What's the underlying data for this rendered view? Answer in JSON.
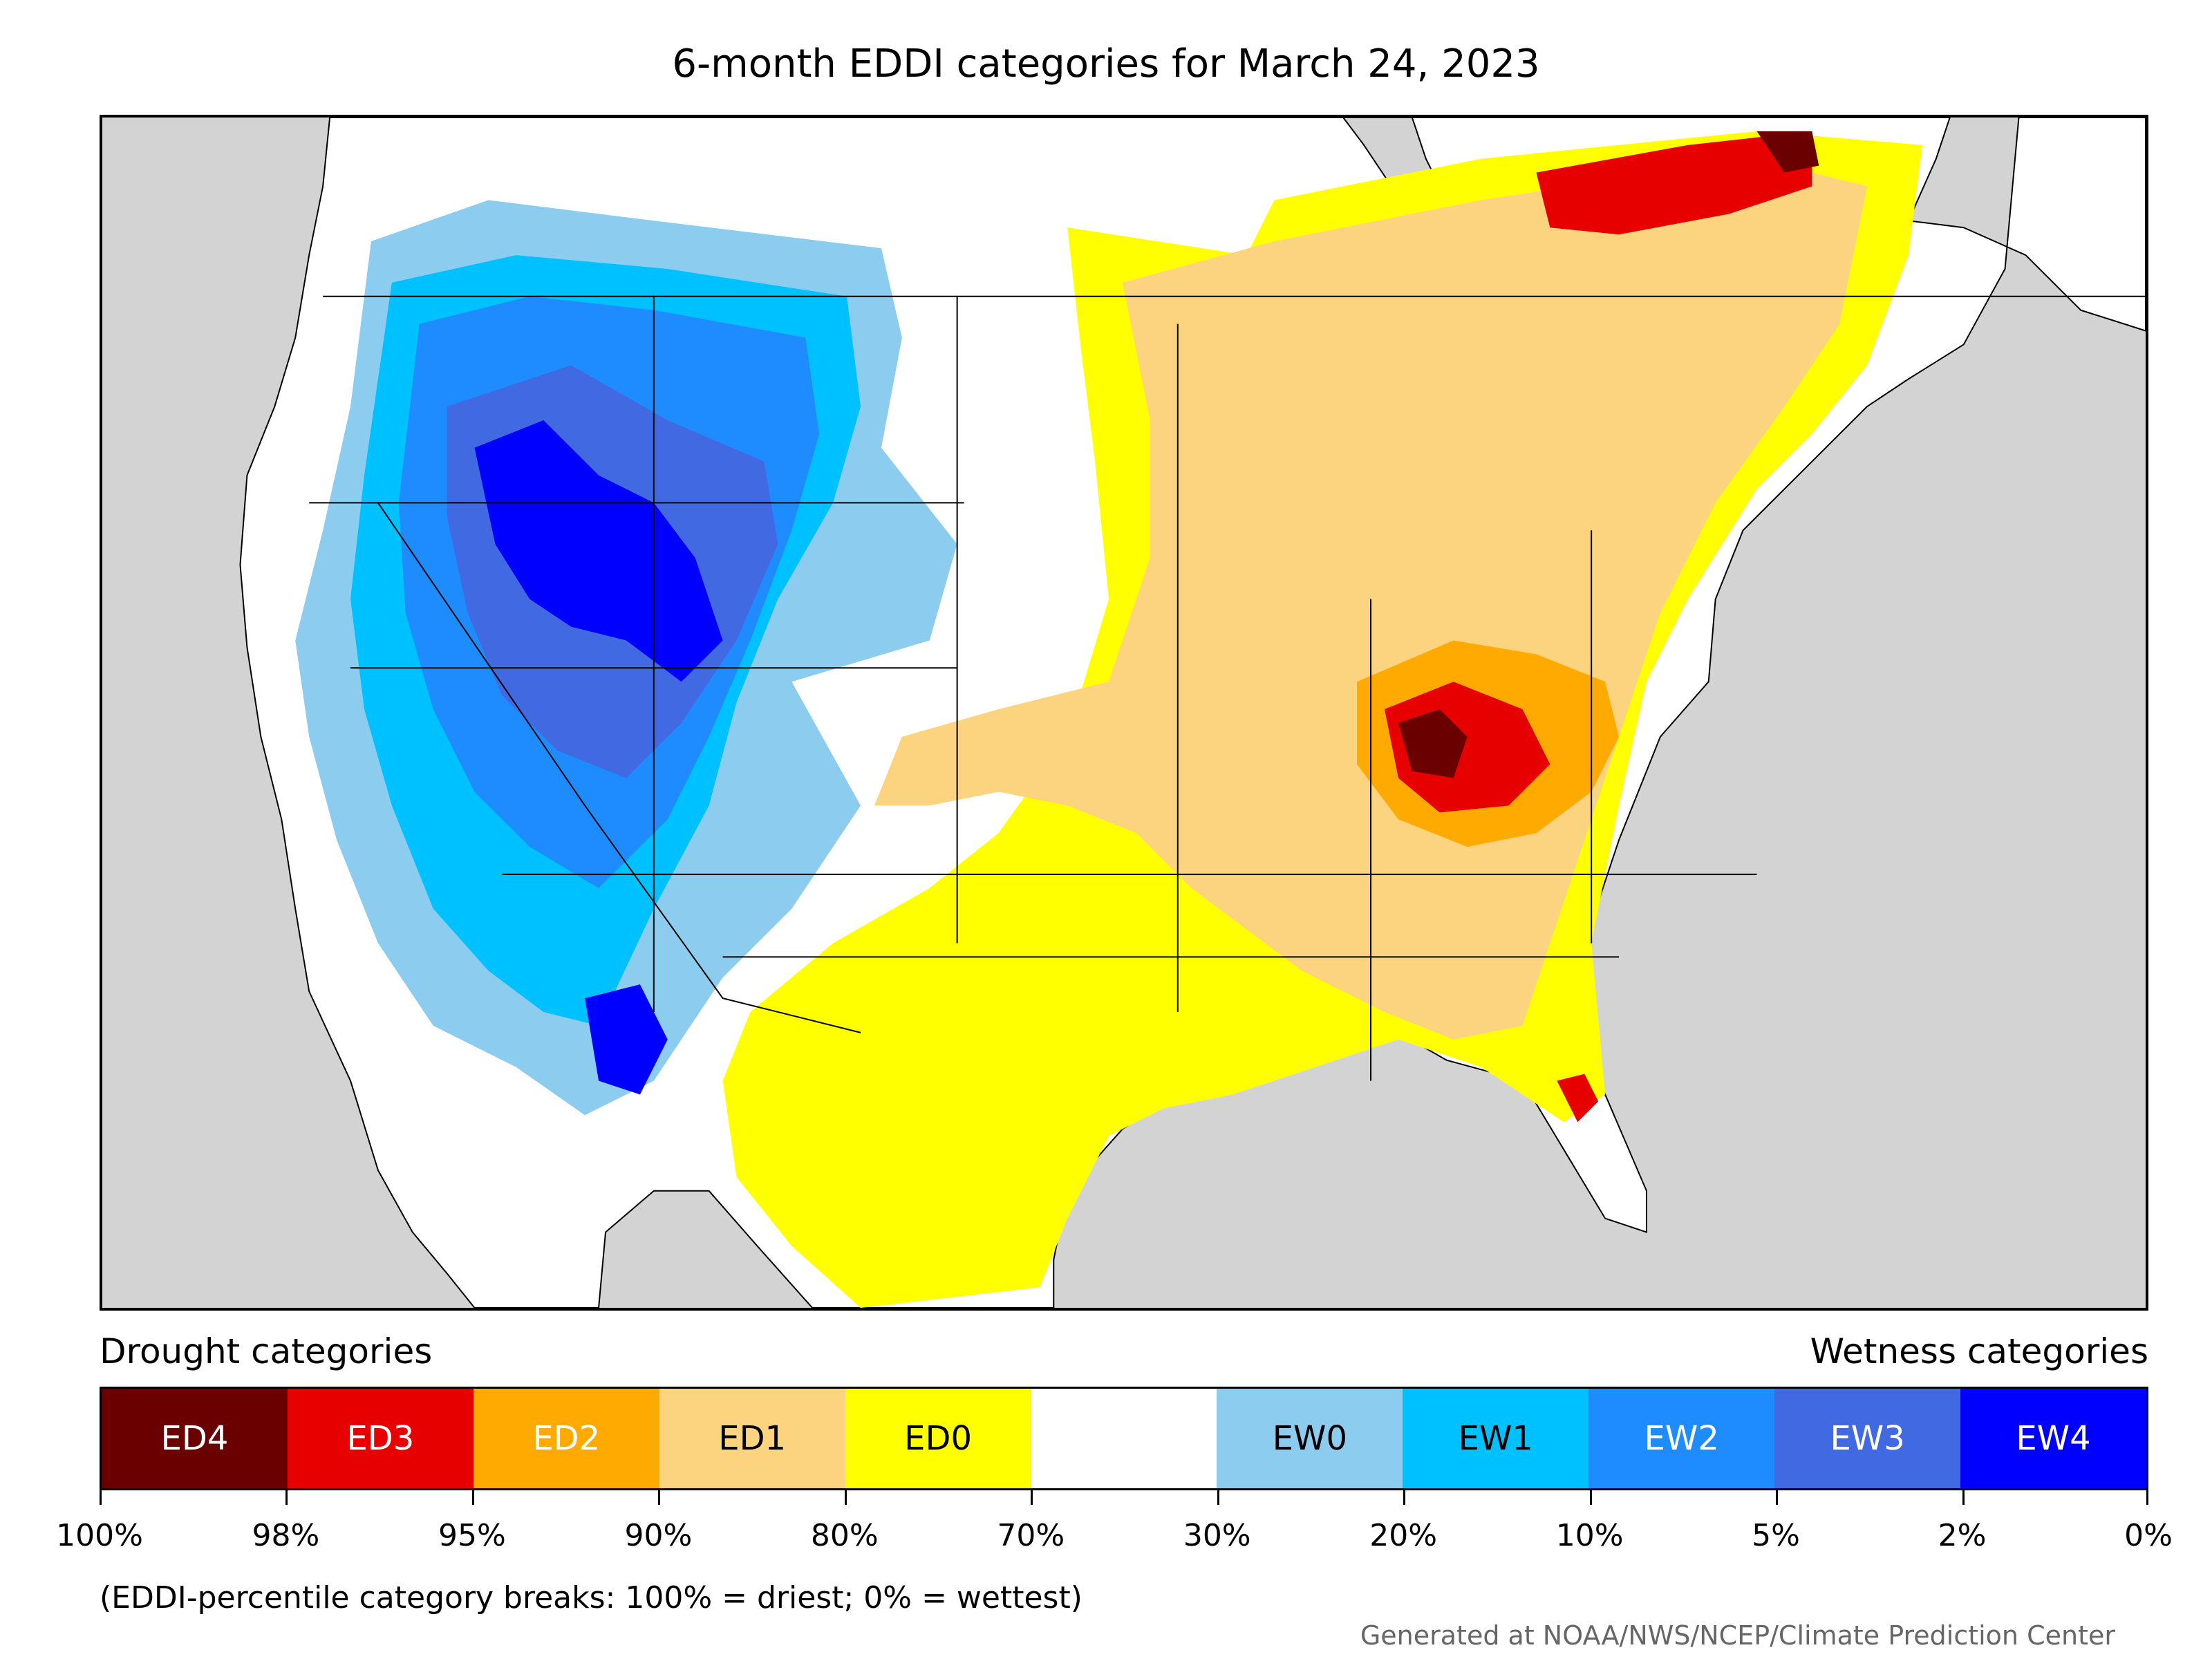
{
  "title": "6-month EDDI categories for March 24, 2023",
  "map": {
    "region": "Contiguous United States",
    "background_color": "#d3d3d3",
    "land_color": "#ffffff",
    "border_color": "#000000"
  },
  "legend": {
    "drought_heading": "Drought categories",
    "wetness_heading": "Wetness categories",
    "categories": [
      {
        "label": "ED4",
        "color": "#6b0000",
        "text_color": "#ffffff"
      },
      {
        "label": "ED3",
        "color": "#e60000",
        "text_color": "#ffffff"
      },
      {
        "label": "ED2",
        "color": "#ffaa00",
        "text_color": "#ffffff"
      },
      {
        "label": "ED1",
        "color": "#fcd37f",
        "text_color": "#000000"
      },
      {
        "label": "ED0",
        "color": "#ffff00",
        "text_color": "#000000"
      },
      {
        "label": "",
        "color": "#ffffff",
        "text_color": "#000000"
      },
      {
        "label": "EW0",
        "color": "#8ccdef",
        "text_color": "#000000"
      },
      {
        "label": "EW1",
        "color": "#00c1ff",
        "text_color": "#000000"
      },
      {
        "label": "EW2",
        "color": "#1e8cff",
        "text_color": "#ffffff"
      },
      {
        "label": "EW3",
        "color": "#4169e1",
        "text_color": "#ffffff"
      },
      {
        "label": "EW4",
        "color": "#0000ff",
        "text_color": "#ffffff"
      }
    ],
    "tick_labels": [
      "100%",
      "98%",
      "95%",
      "90%",
      "80%",
      "70%",
      "30%",
      "20%",
      "10%",
      "5%",
      "2%",
      "0%"
    ]
  },
  "note": "(EDDI-percentile category breaks: 100% = driest; 0% = wettest)",
  "credit": "Generated at NOAA/NWS/NCEP/Climate Prediction Center"
}
